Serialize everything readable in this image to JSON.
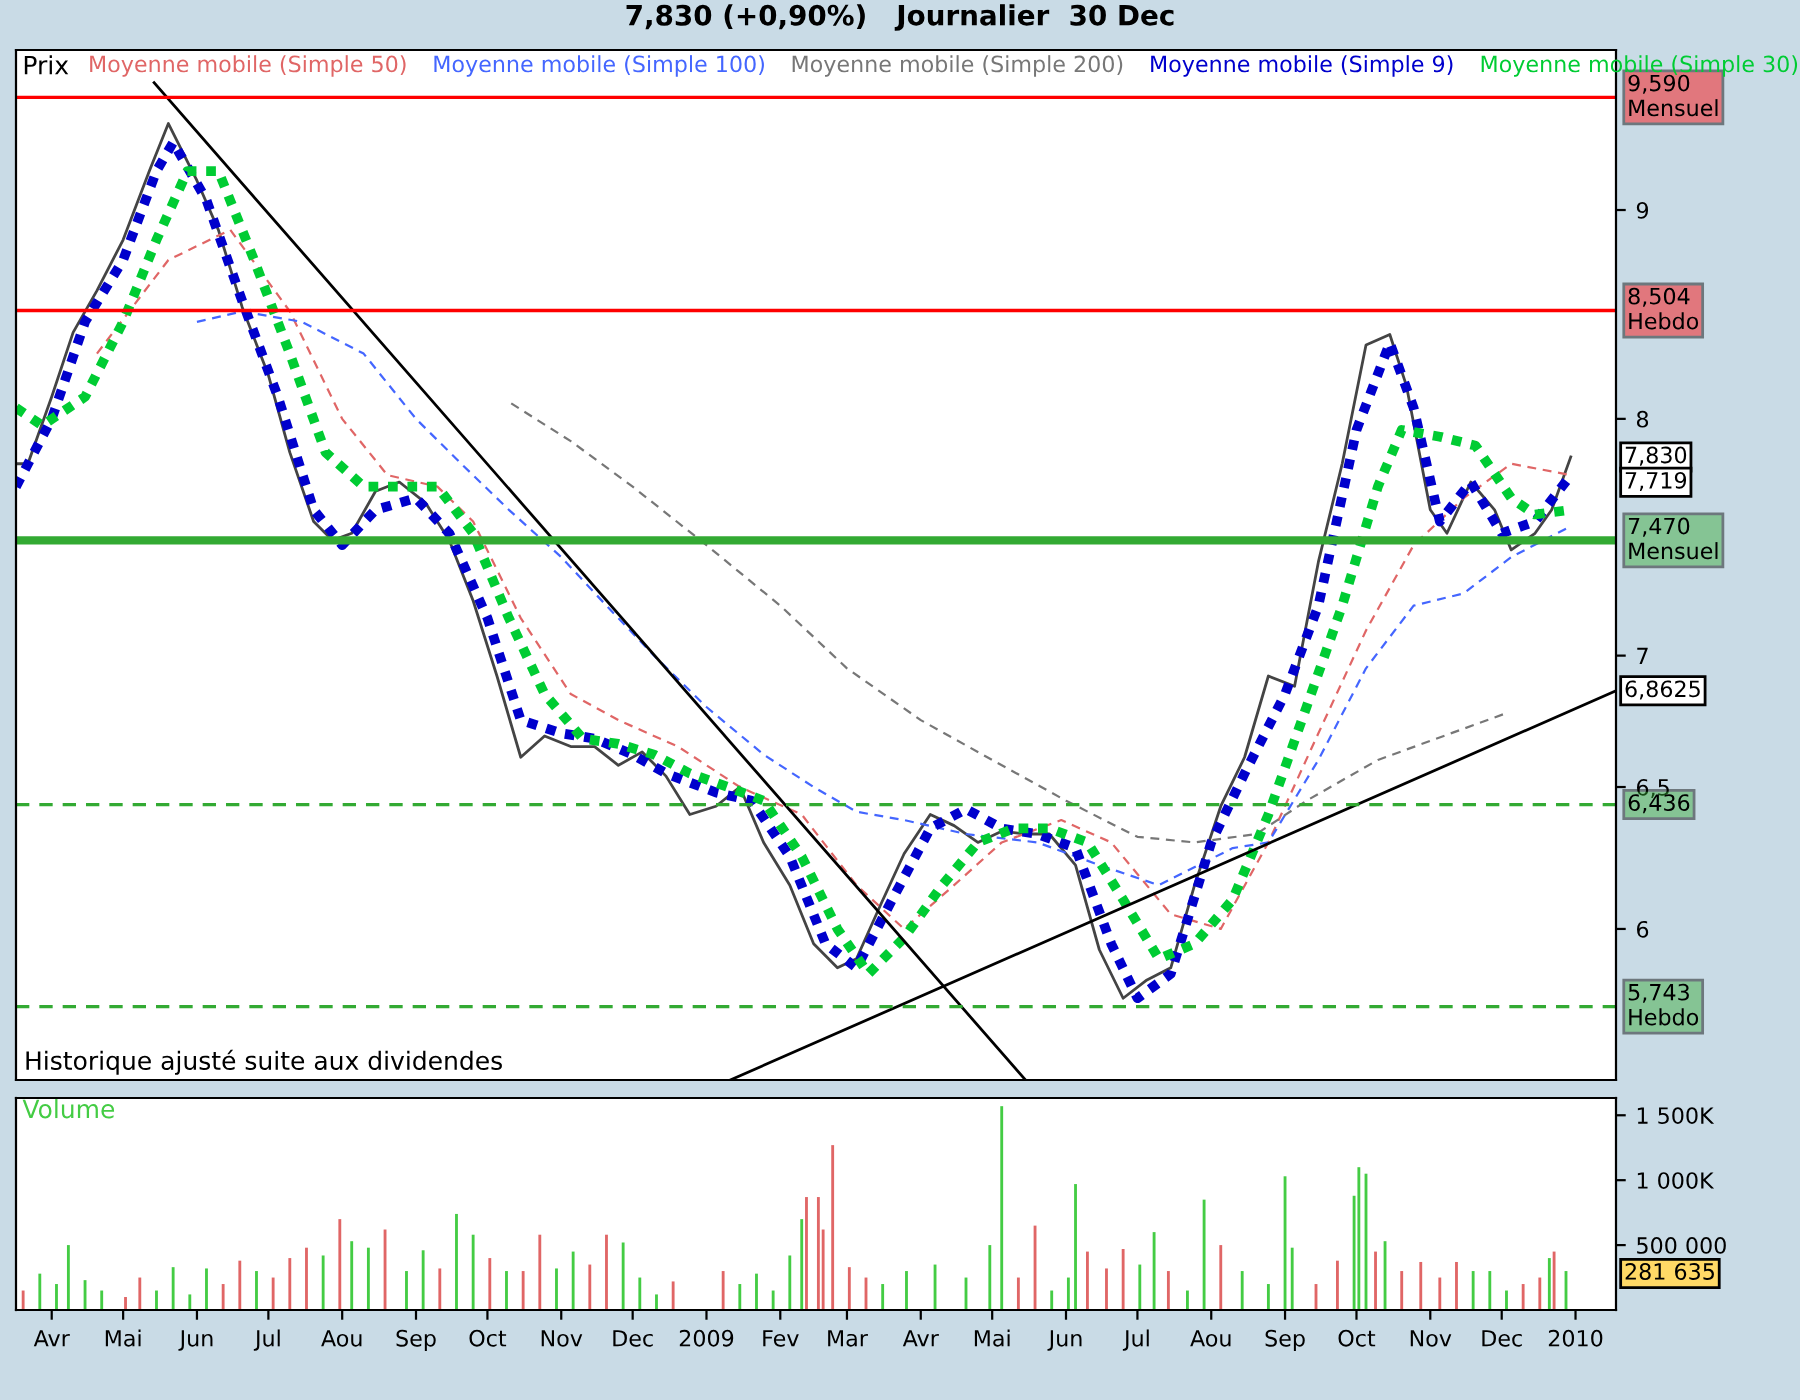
{
  "chart_data": [
    {
      "type": "line",
      "title": "7,830 (+0,90%)   Journalier  30 Dec",
      "ylabel": "Prix",
      "log": "y",
      "grid": false,
      "tick_labels": "y",
      "xlim": [
        "2008-03-17",
        "2010-01-18"
      ],
      "ylim": [
        5.51,
        9.85
      ],
      "yticks": [
        6,
        {
          "value": 6.5,
          "label": "6,5"
        },
        7,
        8,
        9
      ],
      "series": [
        {
          "name": null,
          "color": "#444444",
          "line_style": "solid",
          "x": [
            "2008-03-17",
            "2008-03-22",
            "2008-04-01",
            "2008-04-10",
            "2008-04-20",
            "2008-05-01",
            "2008-05-12",
            "2008-05-20",
            "2008-06-01",
            "2008-06-10",
            "2008-06-20",
            "2008-07-01",
            "2008-07-10",
            "2008-07-20",
            "2008-07-28",
            "2008-08-05",
            "2008-08-15",
            "2008-08-25",
            "2008-09-05",
            "2008-09-15",
            "2008-09-25",
            "2008-10-05",
            "2008-10-15",
            "2008-10-25",
            "2008-11-05",
            "2008-11-15",
            "2008-11-25",
            "2008-12-05",
            "2008-12-15",
            "2008-12-25",
            "2009-01-05",
            "2009-01-15",
            "2009-01-25",
            "2009-02-05",
            "2009-02-15",
            "2009-02-25",
            "2009-03-05",
            "2009-03-15",
            "2009-03-25",
            "2009-04-05",
            "2009-04-15",
            "2009-04-25",
            "2009-05-05",
            "2009-05-15",
            "2009-05-25",
            "2009-06-05",
            "2009-06-15",
            "2009-06-25",
            "2009-07-05",
            "2009-07-15",
            "2009-07-25",
            "2009-08-05",
            "2009-08-15",
            "2009-08-25",
            "2009-09-05",
            "2009-09-15",
            "2009-09-25",
            "2009-10-05",
            "2009-10-15",
            "2009-10-22",
            "2009-11-01",
            "2009-11-08",
            "2009-11-18",
            "2009-11-28",
            "2009-12-05",
            "2009-12-15",
            "2009-12-22",
            "2009-12-30"
          ],
          "values": [
            7.8,
            7.8,
            8.1,
            8.4,
            8.6,
            8.85,
            9.2,
            9.45,
            9.15,
            8.9,
            8.52,
            8.2,
            7.85,
            7.55,
            7.47,
            7.5,
            7.68,
            7.72,
            7.63,
            7.47,
            7.22,
            6.92,
            6.61,
            6.69,
            6.65,
            6.65,
            6.58,
            6.63,
            6.54,
            6.4,
            6.43,
            6.5,
            6.3,
            6.15,
            5.95,
            5.87,
            5.9,
            6.08,
            6.26,
            6.4,
            6.36,
            6.3,
            6.34,
            6.33,
            6.33,
            6.22,
            5.93,
            5.77,
            5.83,
            5.87,
            6.15,
            6.43,
            6.61,
            6.92,
            6.88,
            7.38,
            7.8,
            8.34,
            8.39,
            8.15,
            7.6,
            7.5,
            7.72,
            7.6,
            7.43,
            7.5,
            7.6,
            7.83
          ]
        },
        {
          "name": "Moyenne mobile (Simple 50)",
          "color": "#e06666",
          "line_style": "dashed",
          "x": [
            "2008-04-20",
            "2008-05-20",
            "2008-06-15",
            "2008-07-10",
            "2008-08-01",
            "2008-08-20",
            "2008-09-10",
            "2008-09-25",
            "2008-10-15",
            "2008-11-05",
            "2008-11-25",
            "2008-12-20",
            "2009-01-15",
            "2009-02-10",
            "2009-03-05",
            "2009-03-25",
            "2009-04-15",
            "2009-05-05",
            "2009-05-30",
            "2009-06-20",
            "2009-07-15",
            "2009-08-05",
            "2009-08-25",
            "2009-09-15",
            "2009-10-05",
            "2009-10-25",
            "2009-11-15",
            "2009-12-05",
            "2009-12-30"
          ],
          "values": [
            8.3,
            8.75,
            8.9,
            8.5,
            8.0,
            7.75,
            7.7,
            7.55,
            7.15,
            6.85,
            6.75,
            6.65,
            6.5,
            6.4,
            6.15,
            6.0,
            6.15,
            6.3,
            6.38,
            6.3,
            6.05,
            6.0,
            6.3,
            6.7,
            7.1,
            7.45,
            7.65,
            7.8,
            7.75
          ]
        },
        {
          "name": "Moyenne mobile (Simple 100)",
          "color": "#4466ff",
          "line_style": "dashed",
          "x": [
            "2008-06-01",
            "2008-06-20",
            "2008-07-15",
            "2008-08-10",
            "2008-09-01",
            "2008-09-20",
            "2008-10-10",
            "2008-11-01",
            "2008-11-20",
            "2008-12-10",
            "2009-01-01",
            "2009-01-25",
            "2009-02-15",
            "2009-03-05",
            "2009-03-25",
            "2009-04-20",
            "2009-05-20",
            "2009-06-15",
            "2009-07-10",
            "2009-08-10",
            "2009-08-25",
            "2009-09-15",
            "2009-10-05",
            "2009-10-25",
            "2009-11-15",
            "2009-12-05",
            "2009-12-30"
          ],
          "values": [
            8.45,
            8.5,
            8.45,
            8.3,
            8.0,
            7.8,
            7.6,
            7.4,
            7.2,
            7.0,
            6.8,
            6.62,
            6.5,
            6.41,
            6.38,
            6.33,
            6.3,
            6.22,
            6.15,
            6.28,
            6.3,
            6.6,
            6.95,
            7.2,
            7.25,
            7.4,
            7.53
          ]
        },
        {
          "name": "Moyenne mobile (Simple 200)",
          "color": "#777777",
          "line_style": "dashed",
          "x": [
            "2008-10-11",
            "2008-11-05",
            "2008-12-01",
            "2009-01-01",
            "2009-02-01",
            "2009-03-01",
            "2009-04-01",
            "2009-05-01",
            "2009-06-01",
            "2009-07-01",
            "2009-07-25",
            "2009-08-20",
            "2009-09-10",
            "2009-10-10",
            "2009-12-04"
          ],
          "values": [
            8.07,
            7.9,
            7.7,
            7.45,
            7.2,
            6.95,
            6.75,
            6.6,
            6.45,
            6.32,
            6.3,
            6.33,
            6.45,
            6.6,
            6.78
          ]
        },
        {
          "name": "Moyenne mobile (Simple 9)",
          "color": "#0000cc",
          "line_style": "dotted",
          "x": [
            "2008-03-17",
            "2008-04-01",
            "2008-04-15",
            "2008-05-01",
            "2008-05-15",
            "2008-05-22",
            "2008-06-05",
            "2008-06-20",
            "2008-07-05",
            "2008-07-20",
            "2008-08-01",
            "2008-08-15",
            "2008-09-01",
            "2008-09-15",
            "2008-10-01",
            "2008-10-15",
            "2008-11-01",
            "2008-11-15",
            "2008-12-01",
            "2008-12-15",
            "2009-01-05",
            "2009-01-20",
            "2009-02-05",
            "2009-02-20",
            "2009-03-05",
            "2009-03-20",
            "2009-04-05",
            "2009-04-20",
            "2009-05-05",
            "2009-05-20",
            "2009-06-05",
            "2009-06-20",
            "2009-07-01",
            "2009-07-15",
            "2009-08-01",
            "2009-08-15",
            "2009-09-01",
            "2009-09-15",
            "2009-10-01",
            "2009-10-15",
            "2009-10-25",
            "2009-11-05",
            "2009-11-18",
            "2009-12-01",
            "2009-12-15",
            "2009-12-30"
          ],
          "values": [
            7.7,
            8.0,
            8.45,
            8.75,
            9.2,
            9.35,
            9.05,
            8.55,
            8.1,
            7.6,
            7.45,
            7.6,
            7.65,
            7.5,
            7.15,
            6.75,
            6.7,
            6.68,
            6.62,
            6.55,
            6.48,
            6.45,
            6.25,
            5.95,
            5.87,
            6.1,
            6.35,
            6.42,
            6.35,
            6.33,
            6.28,
            5.95,
            5.77,
            5.85,
            6.3,
            6.55,
            6.85,
            7.2,
            7.95,
            8.35,
            8.05,
            7.55,
            7.72,
            7.5,
            7.55,
            7.75
          ]
        },
        {
          "name": "Moyenne mobile (Simple 30)",
          "color": "#00cc33",
          "line_style": "dotted",
          "x": [
            "2008-03-17",
            "2008-03-28",
            "2008-04-15",
            "2008-05-01",
            "2008-05-15",
            "2008-05-28",
            "2008-06-10",
            "2008-06-25",
            "2008-07-10",
            "2008-07-25",
            "2008-08-10",
            "2008-08-25",
            "2008-09-10",
            "2008-09-25",
            "2008-10-10",
            "2008-10-25",
            "2008-11-10",
            "2008-11-25",
            "2008-12-10",
            "2008-12-25",
            "2009-01-10",
            "2009-01-25",
            "2009-02-10",
            "2009-02-25",
            "2009-03-10",
            "2009-03-25",
            "2009-04-10",
            "2009-04-25",
            "2009-05-10",
            "2009-05-25",
            "2009-06-10",
            "2009-06-25",
            "2009-07-10",
            "2009-07-25",
            "2009-08-10",
            "2009-08-25",
            "2009-09-10",
            "2009-09-25",
            "2009-10-10",
            "2009-10-20",
            "2009-11-05",
            "2009-11-20",
            "2009-12-05",
            "2009-12-15",
            "2009-12-30"
          ],
          "values": [
            8.05,
            7.97,
            8.1,
            8.45,
            8.85,
            9.2,
            9.2,
            8.75,
            8.3,
            7.85,
            7.7,
            7.7,
            7.7,
            7.5,
            7.15,
            6.85,
            6.68,
            6.66,
            6.62,
            6.55,
            6.5,
            6.45,
            6.25,
            6.0,
            5.85,
            5.97,
            6.15,
            6.3,
            6.35,
            6.35,
            6.3,
            6.1,
            5.9,
            5.95,
            6.1,
            6.4,
            6.8,
            7.2,
            7.7,
            7.95,
            7.92,
            7.88,
            7.65,
            7.58,
            7.6
          ]
        },
        {
          "name": null,
          "color": "#000000",
          "line_style": "solid",
          "x": [
            "2008-05-14",
            "2009-05-15"
          ],
          "values": [
            9.67,
            5.51
          ]
        },
        {
          "name": null,
          "color": "#000000",
          "line_style": "solid",
          "x": [
            "2009-01-11",
            "2010-01-18"
          ],
          "values": [
            5.51,
            6.8625
          ]
        }
      ],
      "ref_lines": [
        {
          "axis": "y",
          "value": 9.59,
          "label": "9,590\nMensuel",
          "color": "#ff0000",
          "line_style": "solid"
        },
        {
          "axis": "y",
          "value": 8.504,
          "label": "8,504\nHebdo",
          "color": "#ff0000",
          "line_style": "solid"
        },
        {
          "axis": "y",
          "value": 7.47,
          "label": "7,470\nMensuel",
          "color": "#33aa33",
          "line_style": "solid"
        },
        {
          "axis": "y",
          "value": 6.436,
          "label": "6,436",
          "color": "#33aa33",
          "line_style": "dashed"
        },
        {
          "axis": "y",
          "value": 5.743,
          "label": "5,743\nHebdo",
          "color": "#33aa33",
          "line_style": "dashed"
        }
      ],
      "annotations": [
        {
          "text": "7,830",
          "x": "2009-12-30",
          "y": 7.83
        },
        {
          "text": "7,719",
          "x": "2009-12-30",
          "y": 7.719
        },
        {
          "text": "6,8625",
          "x": "2010-01-18",
          "y": 6.8625
        },
        "Historique ajusté suite aux dividendes"
      ]
    },
    {
      "type": "bar",
      "grid": false,
      "xlim": [
        "2008-03-17",
        "2010-01-18"
      ],
      "ylim": [
        0,
        1633000
      ],
      "yticks": [
        {
          "value": 500000,
          "label": "500 000"
        },
        {
          "value": 1000000,
          "label": "1 000K"
        },
        {
          "value": 1500000,
          "label": "1 500K"
        }
      ],
      "xticks": [
        {
          "value": "2008-04-01",
          "label": "Avr"
        },
        {
          "value": "2008-05-01",
          "label": "Mai"
        },
        {
          "value": "2008-06-01",
          "label": "Jun"
        },
        {
          "value": "2008-07-01",
          "label": "Jul"
        },
        {
          "value": "2008-08-01",
          "label": "Aou"
        },
        {
          "value": "2008-09-01",
          "label": "Sep"
        },
        {
          "value": "2008-10-01",
          "label": "Oct"
        },
        {
          "value": "2008-11-01",
          "label": "Nov"
        },
        {
          "value": "2008-12-01",
          "label": "Dec"
        },
        {
          "value": "2009-01-01",
          "label": "2009"
        },
        {
          "value": "2009-02-01",
          "label": "Fev"
        },
        {
          "value": "2009-03-01",
          "label": "Mar"
        },
        {
          "value": "2009-04-01",
          "label": "Avr"
        },
        {
          "value": "2009-05-01",
          "label": "Mai"
        },
        {
          "value": "2009-06-01",
          "label": "Jun"
        },
        {
          "value": "2009-07-01",
          "label": "Jul"
        },
        {
          "value": "2009-08-01",
          "label": "Aou"
        },
        {
          "value": "2009-09-01",
          "label": "Sep"
        },
        {
          "value": "2009-10-01",
          "label": "Oct"
        },
        {
          "value": "2009-11-01",
          "label": "Nov"
        },
        {
          "value": "2009-12-01",
          "label": "Dec"
        },
        {
          "value": "2010-01-01",
          "label": "2010"
        }
      ],
      "series": [
        {
          "name": "Volume",
          "color": "#44cc44",
          "x": [
            "2008-03-20",
            "2008-03-27",
            "2008-04-03",
            "2008-04-08",
            "2008-04-15",
            "2008-04-22",
            "2008-05-02",
            "2008-05-08",
            "2008-05-15",
            "2008-05-22",
            "2008-05-29",
            "2008-06-05",
            "2008-06-12",
            "2008-06-19",
            "2008-06-26",
            "2008-07-03",
            "2008-07-10",
            "2008-07-17",
            "2008-07-24",
            "2008-07-31",
            "2008-08-05",
            "2008-08-12",
            "2008-08-19",
            "2008-08-28",
            "2008-09-04",
            "2008-09-11",
            "2008-09-18",
            "2008-09-25",
            "2008-10-02",
            "2008-10-09",
            "2008-10-16",
            "2008-10-23",
            "2008-10-30",
            "2008-11-06",
            "2008-11-13",
            "2008-11-20",
            "2008-11-27",
            "2008-12-04",
            "2008-12-11",
            "2008-12-18",
            "2009-01-08",
            "2009-01-15",
            "2009-01-22",
            "2009-01-29",
            "2009-02-05",
            "2009-02-10",
            "2009-02-12",
            "2009-02-17",
            "2009-02-19",
            "2009-02-23",
            "2009-03-02",
            "2009-03-09",
            "2009-03-16",
            "2009-03-26",
            "2009-04-07",
            "2009-04-20",
            "2009-04-30",
            "2009-05-05",
            "2009-05-12",
            "2009-05-19",
            "2009-05-26",
            "2009-06-02",
            "2009-06-05",
            "2009-06-10",
            "2009-06-18",
            "2009-06-25",
            "2009-07-02",
            "2009-07-08",
            "2009-07-14",
            "2009-07-22",
            "2009-07-29",
            "2009-08-05",
            "2009-08-14",
            "2009-08-25",
            "2009-09-01",
            "2009-09-04",
            "2009-09-14",
            "2009-09-23",
            "2009-09-30",
            "2009-10-02",
            "2009-10-05",
            "2009-10-09",
            "2009-10-13",
            "2009-10-20",
            "2009-10-28",
            "2009-11-05",
            "2009-11-12",
            "2009-11-19",
            "2009-11-26",
            "2009-12-03",
            "2009-12-10",
            "2009-12-17",
            "2009-12-21",
            "2009-12-23",
            "2009-12-28"
          ],
          "values": [
            150000,
            280000,
            200000,
            500000,
            230000,
            150000,
            100000,
            250000,
            150000,
            330000,
            120000,
            320000,
            200000,
            380000,
            300000,
            250000,
            400000,
            480000,
            420000,
            700000,
            530000,
            480000,
            620000,
            300000,
            460000,
            320000,
            740000,
            580000,
            400000,
            300000,
            300000,
            580000,
            320000,
            450000,
            350000,
            580000,
            520000,
            250000,
            120000,
            220000,
            300000,
            200000,
            280000,
            150000,
            420000,
            700000,
            870000,
            870000,
            620000,
            1270000,
            330000,
            250000,
            200000,
            300000,
            350000,
            250000,
            500000,
            1570000,
            250000,
            650000,
            150000,
            250000,
            970000,
            450000,
            320000,
            470000,
            350000,
            600000,
            300000,
            150000,
            850000,
            500000,
            300000,
            200000,
            1030000,
            480000,
            200000,
            380000,
            880000,
            1100000,
            1050000,
            450000,
            530000,
            300000,
            370000,
            250000,
            370000,
            300000,
            300000,
            150000,
            200000,
            250000,
            400000,
            450000,
            300000
          ],
          "colors": [
            "#e06666",
            "#44cc44",
            "#44cc44",
            "#44cc44",
            "#44cc44",
            "#44cc44",
            "#e06666",
            "#e06666",
            "#44cc44",
            "#44cc44",
            "#44cc44",
            "#44cc44",
            "#e06666",
            "#e06666",
            "#44cc44",
            "#e06666",
            "#e06666",
            "#e06666",
            "#44cc44",
            "#e06666",
            "#44cc44",
            "#44cc44",
            "#e06666",
            "#44cc44",
            "#44cc44",
            "#e06666",
            "#44cc44",
            "#44cc44",
            "#e06666",
            "#44cc44",
            "#e06666",
            "#e06666",
            "#44cc44",
            "#44cc44",
            "#e06666",
            "#e06666",
            "#44cc44",
            "#44cc44",
            "#44cc44",
            "#e06666",
            "#e06666",
            "#44cc44",
            "#44cc44",
            "#44cc44",
            "#44cc44",
            "#44cc44",
            "#e06666",
            "#e06666",
            "#e06666",
            "#e06666",
            "#e06666",
            "#e06666",
            "#44cc44",
            "#44cc44",
            "#44cc44",
            "#44cc44",
            "#44cc44",
            "#44cc44",
            "#e06666",
            "#e06666",
            "#44cc44",
            "#44cc44",
            "#44cc44",
            "#e06666",
            "#e06666",
            "#e06666",
            "#44cc44",
            "#44cc44",
            "#e06666",
            "#44cc44",
            "#44cc44",
            "#e06666",
            "#44cc44",
            "#44cc44",
            "#44cc44",
            "#44cc44",
            "#e06666",
            "#e06666",
            "#44cc44",
            "#44cc44",
            "#44cc44",
            "#e06666",
            "#44cc44",
            "#e06666",
            "#e06666",
            "#e06666",
            "#e06666",
            "#44cc44",
            "#44cc44",
            "#44cc44",
            "#e06666",
            "#e06666",
            "#44cc44",
            "#e06666",
            "#44cc44"
          ]
        }
      ],
      "annotations": [
        {
          "text": "281 635",
          "x": "2009-12-30",
          "y": 281635
        }
      ]
    }
  ]
}
